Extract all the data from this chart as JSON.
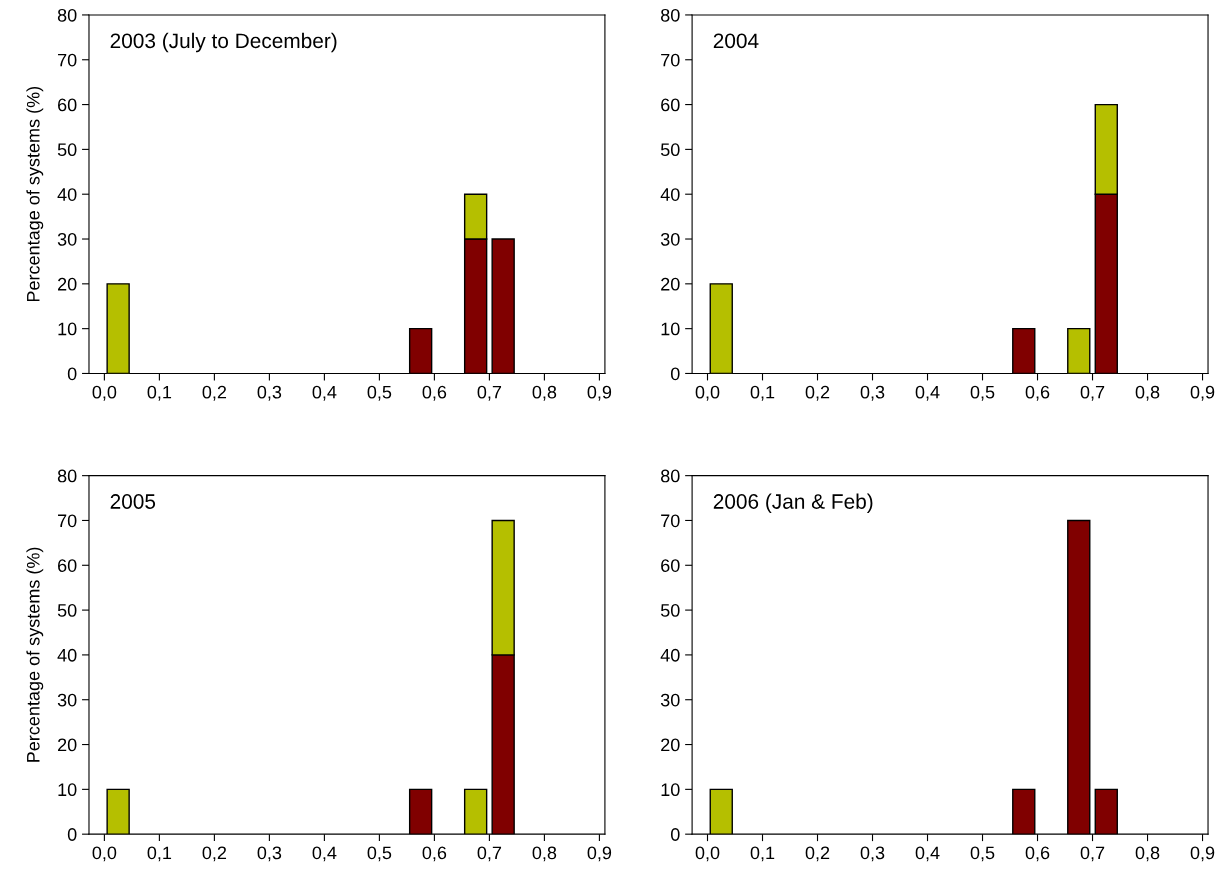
{
  "chart_data": [
    {
      "type": "bar",
      "stacked": true,
      "title": "2003 (July to December)",
      "ylabel": "Percentage of systems (%)",
      "x": [
        0.025,
        0.575,
        0.675,
        0.725
      ],
      "series": [
        {
          "color": "#800000",
          "values": [
            null,
            10,
            30,
            30
          ]
        },
        {
          "color": "#b5bf00",
          "values": [
            20,
            null,
            10,
            null
          ]
        }
      ],
      "xlim": [
        -0.028,
        0.91
      ],
      "ylim": [
        0,
        80
      ],
      "yticks": [
        0,
        10,
        20,
        30,
        40,
        50,
        60,
        70,
        80
      ],
      "xticks": [
        {
          "value": 0,
          "label": "0,0"
        },
        {
          "value": 0.1,
          "label": "0,1"
        },
        {
          "value": 0.2,
          "label": "0,2"
        },
        {
          "value": 0.3,
          "label": "0,3"
        },
        {
          "value": 0.4,
          "label": "0,4"
        },
        {
          "value": 0.5,
          "label": "0,5"
        },
        {
          "value": 0.6,
          "label": "0,6"
        },
        {
          "value": 0.7,
          "label": "0,7"
        },
        {
          "value": 0.8,
          "label": "0,8"
        },
        {
          "value": 0.9,
          "label": "0,9"
        }
      ]
    },
    {
      "type": "bar",
      "stacked": true,
      "title": "2004",
      "x": [
        0.025,
        0.575,
        0.675,
        0.725
      ],
      "series": [
        {
          "color": "#800000",
          "values": [
            null,
            10,
            null,
            40
          ]
        },
        {
          "color": "#b5bf00",
          "values": [
            20,
            null,
            10,
            20
          ]
        }
      ],
      "xlim": [
        -0.028,
        0.91
      ],
      "ylim": [
        0,
        80
      ],
      "yticks": [
        0,
        10,
        20,
        30,
        40,
        50,
        60,
        70,
        80
      ],
      "xticks": [
        {
          "value": 0,
          "label": "0,0"
        },
        {
          "value": 0.1,
          "label": "0,1"
        },
        {
          "value": 0.2,
          "label": "0,2"
        },
        {
          "value": 0.3,
          "label": "0,3"
        },
        {
          "value": 0.4,
          "label": "0,4"
        },
        {
          "value": 0.5,
          "label": "0,5"
        },
        {
          "value": 0.6,
          "label": "0,6"
        },
        {
          "value": 0.7,
          "label": "0,7"
        },
        {
          "value": 0.8,
          "label": "0,8"
        },
        {
          "value": 0.9,
          "label": "0,9"
        }
      ]
    },
    {
      "type": "bar",
      "stacked": true,
      "title": "2005",
      "ylabel": "Percentage of systems (%)",
      "x": [
        0.025,
        0.575,
        0.675,
        0.725
      ],
      "series": [
        {
          "color": "#800000",
          "values": [
            null,
            10,
            null,
            40
          ]
        },
        {
          "color": "#b5bf00",
          "values": [
            10,
            null,
            10,
            30
          ]
        }
      ],
      "xlim": [
        -0.028,
        0.91
      ],
      "ylim": [
        0,
        80
      ],
      "yticks": [
        0,
        10,
        20,
        30,
        40,
        50,
        60,
        70,
        80
      ],
      "xticks": [
        {
          "value": 0,
          "label": "0,0"
        },
        {
          "value": 0.1,
          "label": "0,1"
        },
        {
          "value": 0.2,
          "label": "0,2"
        },
        {
          "value": 0.3,
          "label": "0,3"
        },
        {
          "value": 0.4,
          "label": "0,4"
        },
        {
          "value": 0.5,
          "label": "0,5"
        },
        {
          "value": 0.6,
          "label": "0,6"
        },
        {
          "value": 0.7,
          "label": "0,7"
        },
        {
          "value": 0.8,
          "label": "0,8"
        },
        {
          "value": 0.9,
          "label": "0,9"
        }
      ]
    },
    {
      "type": "bar",
      "stacked": true,
      "title": "2006 (Jan & Feb)",
      "x": [
        0.025,
        0.575,
        0.675,
        0.725
      ],
      "series": [
        {
          "color": "#800000",
          "values": [
            null,
            10,
            70,
            10
          ]
        },
        {
          "color": "#b5bf00",
          "values": [
            10,
            null,
            null,
            null
          ]
        }
      ],
      "xlim": [
        -0.028,
        0.91
      ],
      "ylim": [
        0,
        80
      ],
      "yticks": [
        0,
        10,
        20,
        30,
        40,
        50,
        60,
        70,
        80
      ],
      "xticks": [
        {
          "value": 0,
          "label": "0,0"
        },
        {
          "value": 0.1,
          "label": "0,1"
        },
        {
          "value": 0.2,
          "label": "0,2"
        },
        {
          "value": 0.3,
          "label": "0,3"
        },
        {
          "value": 0.4,
          "label": "0,4"
        },
        {
          "value": 0.5,
          "label": "0,5"
        },
        {
          "value": 0.6,
          "label": "0,6"
        },
        {
          "value": 0.7,
          "label": "0,7"
        },
        {
          "value": 0.8,
          "label": "0,8"
        },
        {
          "value": 0.9,
          "label": "0,9"
        }
      ]
    }
  ]
}
